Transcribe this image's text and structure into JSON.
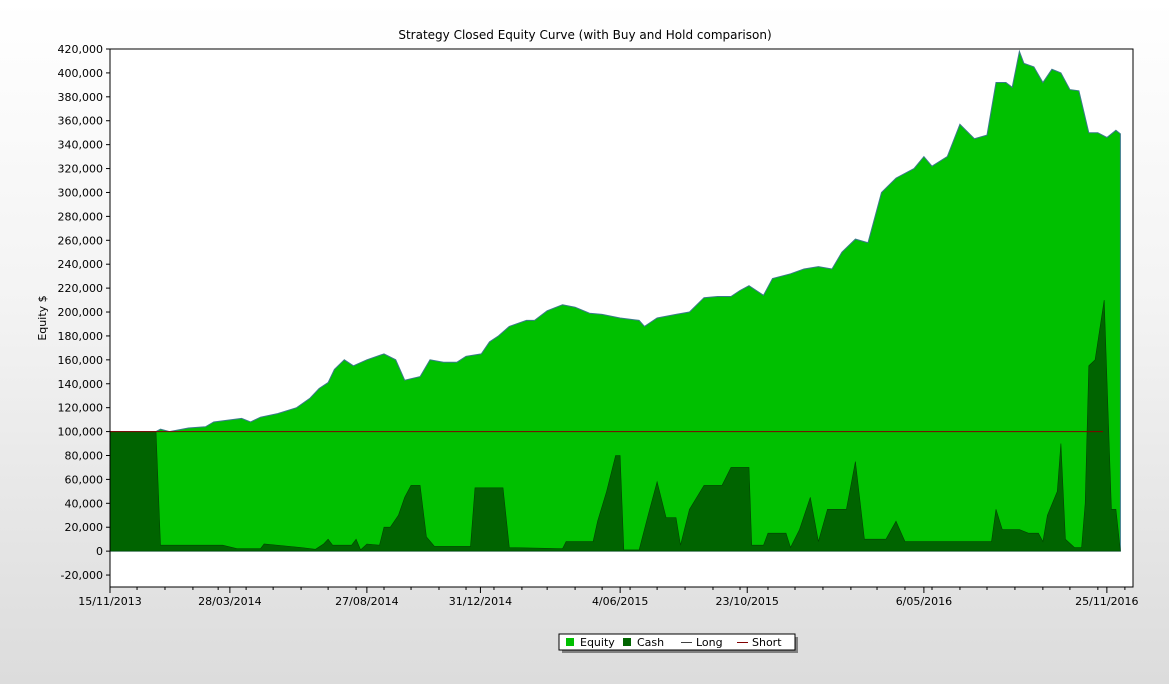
{
  "chart_data": {
    "type": "area",
    "title": "Strategy Closed Equity Curve (with Buy and Hold comparison)",
    "ylabel": "Equity $",
    "xlabel": "",
    "ylim": [
      -30000,
      420000
    ],
    "yticks": [
      -20000,
      0,
      20000,
      40000,
      60000,
      80000,
      100000,
      120000,
      140000,
      160000,
      180000,
      200000,
      220000,
      240000,
      260000,
      280000,
      300000,
      320000,
      340000,
      360000,
      380000,
      400000,
      420000
    ],
    "ytick_labels": [
      "-20,000",
      "0",
      "20,000",
      "40,000",
      "60,000",
      "80,000",
      "100,000",
      "120,000",
      "140,000",
      "160,000",
      "180,000",
      "200,000",
      "220,000",
      "240,000",
      "260,000",
      "280,000",
      "300,000",
      "320,000",
      "340,000",
      "360,000",
      "380,000",
      "400,000",
      "420,000"
    ],
    "xlim": [
      "2013-11-15",
      "2016-12-24"
    ],
    "xticks": [
      "2013-11-15",
      "2014-03-28",
      "2014-08-27",
      "2014-12-31",
      "2015-06-04",
      "2015-10-23",
      "2016-05-06",
      "2016-11-25"
    ],
    "xtick_labels": [
      "15/11/2013",
      "28/03/2014",
      "27/08/2014",
      "31/12/2014",
      "4/06/2015",
      "23/10/2015",
      "6/05/2016",
      "25/11/2016"
    ],
    "grid": false,
    "legend_position": "bottom-center",
    "legend": [
      {
        "label": "Equity",
        "color": "#00c000",
        "kind": "square"
      },
      {
        "label": "Cash",
        "color": "#006400",
        "kind": "square"
      },
      {
        "label": "Long",
        "color": "#404040",
        "kind": "line"
      },
      {
        "label": "Short",
        "color": "#800000",
        "kind": "line"
      }
    ],
    "series": [
      {
        "name": "Equity",
        "color": "#00c000",
        "points": [
          [
            "2013-11-15",
            100000
          ],
          [
            "2014-01-05",
            100000
          ],
          [
            "2014-01-10",
            102000
          ],
          [
            "2014-01-20",
            100000
          ],
          [
            "2014-02-10",
            103000
          ],
          [
            "2014-03-01",
            104000
          ],
          [
            "2014-03-10",
            108000
          ],
          [
            "2014-04-10",
            111000
          ],
          [
            "2014-04-20",
            108000
          ],
          [
            "2014-05-01",
            112000
          ],
          [
            "2014-05-20",
            115000
          ],
          [
            "2014-06-10",
            120000
          ],
          [
            "2014-06-25",
            128000
          ],
          [
            "2014-07-05",
            136000
          ],
          [
            "2014-07-15",
            141000
          ],
          [
            "2014-07-22",
            152000
          ],
          [
            "2014-08-02",
            160000
          ],
          [
            "2014-08-12",
            155000
          ],
          [
            "2014-08-27",
            160000
          ],
          [
            "2014-09-15",
            165000
          ],
          [
            "2014-09-28",
            160000
          ],
          [
            "2014-10-08",
            143000
          ],
          [
            "2014-10-25",
            146000
          ],
          [
            "2014-11-05",
            160000
          ],
          [
            "2014-11-20",
            158000
          ],
          [
            "2014-12-05",
            158000
          ],
          [
            "2014-12-15",
            163000
          ],
          [
            "2015-01-01",
            165000
          ],
          [
            "2015-01-10",
            175000
          ],
          [
            "2015-01-20",
            180000
          ],
          [
            "2015-02-01",
            188000
          ],
          [
            "2015-02-20",
            193000
          ],
          [
            "2015-03-01",
            193000
          ],
          [
            "2015-03-15",
            201000
          ],
          [
            "2015-04-01",
            206000
          ],
          [
            "2015-04-15",
            204000
          ],
          [
            "2015-05-01",
            199000
          ],
          [
            "2015-05-15",
            198000
          ],
          [
            "2015-06-04",
            195000
          ],
          [
            "2015-06-25",
            193000
          ],
          [
            "2015-07-01",
            188000
          ],
          [
            "2015-07-15",
            195000
          ],
          [
            "2015-08-05",
            198000
          ],
          [
            "2015-08-20",
            200000
          ],
          [
            "2015-09-05",
            212000
          ],
          [
            "2015-09-20",
            213000
          ],
          [
            "2015-10-05",
            213000
          ],
          [
            "2015-10-15",
            218000
          ],
          [
            "2015-10-25",
            222000
          ],
          [
            "2015-11-10",
            214000
          ],
          [
            "2015-11-20",
            228000
          ],
          [
            "2015-12-10",
            232000
          ],
          [
            "2015-12-25",
            236000
          ],
          [
            "2016-01-10",
            238000
          ],
          [
            "2016-01-25",
            236000
          ],
          [
            "2016-02-05",
            250000
          ],
          [
            "2016-02-20",
            261000
          ],
          [
            "2016-03-05",
            258000
          ],
          [
            "2016-03-20",
            300000
          ],
          [
            "2016-04-05",
            312000
          ],
          [
            "2016-04-25",
            320000
          ],
          [
            "2016-05-06",
            330000
          ],
          [
            "2016-05-15",
            322000
          ],
          [
            "2016-06-01",
            330000
          ],
          [
            "2016-06-15",
            357000
          ],
          [
            "2016-07-01",
            345000
          ],
          [
            "2016-07-15",
            348000
          ],
          [
            "2016-07-25",
            392000
          ],
          [
            "2016-08-05",
            392000
          ],
          [
            "2016-08-12",
            388000
          ],
          [
            "2016-08-20",
            418000
          ],
          [
            "2016-08-25",
            408000
          ],
          [
            "2016-09-05",
            405000
          ],
          [
            "2016-09-15",
            392000
          ],
          [
            "2016-09-25",
            403000
          ],
          [
            "2016-10-05",
            400000
          ],
          [
            "2016-10-15",
            386000
          ],
          [
            "2016-10-25",
            385000
          ],
          [
            "2016-11-05",
            350000
          ],
          [
            "2016-11-15",
            350000
          ],
          [
            "2016-11-25",
            346000
          ],
          [
            "2016-12-05",
            352000
          ],
          [
            "2016-12-10",
            349000
          ]
        ]
      },
      {
        "name": "Cash",
        "color": "#006400",
        "points": [
          [
            "2013-11-15",
            100000
          ],
          [
            "2014-01-05",
            100000
          ],
          [
            "2014-01-10",
            5000
          ],
          [
            "2014-03-20",
            5000
          ],
          [
            "2014-04-05",
            2000
          ],
          [
            "2014-05-01",
            2000
          ],
          [
            "2014-05-05",
            6000
          ],
          [
            "2014-06-15",
            3000
          ],
          [
            "2014-07-01",
            1500
          ],
          [
            "2014-07-10",
            6000
          ],
          [
            "2014-07-15",
            10000
          ],
          [
            "2014-07-20",
            5000
          ],
          [
            "2014-08-10",
            5000
          ],
          [
            "2014-08-15",
            10000
          ],
          [
            "2014-08-20",
            1000
          ],
          [
            "2014-08-27",
            6000
          ],
          [
            "2014-09-10",
            5000
          ],
          [
            "2014-09-15",
            20000
          ],
          [
            "2014-09-22",
            20000
          ],
          [
            "2014-10-01",
            30000
          ],
          [
            "2014-10-08",
            45000
          ],
          [
            "2014-10-15",
            55000
          ],
          [
            "2014-10-25",
            55000
          ],
          [
            "2014-11-01",
            12000
          ],
          [
            "2014-11-10",
            4000
          ],
          [
            "2014-12-20",
            4000
          ],
          [
            "2014-12-25",
            53000
          ],
          [
            "2015-01-25",
            53000
          ],
          [
            "2015-02-01",
            3000
          ],
          [
            "2015-04-01",
            2000
          ],
          [
            "2015-04-05",
            8000
          ],
          [
            "2015-05-05",
            8000
          ],
          [
            "2015-05-10",
            25000
          ],
          [
            "2015-05-20",
            50000
          ],
          [
            "2015-05-30",
            80000
          ],
          [
            "2015-06-04",
            80000
          ],
          [
            "2015-06-08",
            1000
          ],
          [
            "2015-06-25",
            1000
          ],
          [
            "2015-07-05",
            30000
          ],
          [
            "2015-07-15",
            58000
          ],
          [
            "2015-07-25",
            28000
          ],
          [
            "2015-08-05",
            28000
          ],
          [
            "2015-08-10",
            5000
          ],
          [
            "2015-08-20",
            35000
          ],
          [
            "2015-09-05",
            55000
          ],
          [
            "2015-09-25",
            55000
          ],
          [
            "2015-10-05",
            70000
          ],
          [
            "2015-10-25",
            70000
          ],
          [
            "2015-10-28",
            5000
          ],
          [
            "2015-11-10",
            5000
          ],
          [
            "2015-11-15",
            15000
          ],
          [
            "2015-12-05",
            15000
          ],
          [
            "2015-12-10",
            3000
          ],
          [
            "2015-12-20",
            18000
          ],
          [
            "2016-01-01",
            45000
          ],
          [
            "2016-01-10",
            8000
          ],
          [
            "2016-01-20",
            35000
          ],
          [
            "2016-02-10",
            35000
          ],
          [
            "2016-02-20",
            75000
          ],
          [
            "2016-03-01",
            10000
          ],
          [
            "2016-03-25",
            10000
          ],
          [
            "2016-04-05",
            25000
          ],
          [
            "2016-04-15",
            8000
          ],
          [
            "2016-07-20",
            8000
          ],
          [
            "2016-07-25",
            35000
          ],
          [
            "2016-08-01",
            18000
          ],
          [
            "2016-08-20",
            18000
          ],
          [
            "2016-08-30",
            15000
          ],
          [
            "2016-09-10",
            15000
          ],
          [
            "2016-09-15",
            8000
          ],
          [
            "2016-09-20",
            30000
          ],
          [
            "2016-10-01",
            50000
          ],
          [
            "2016-10-05",
            90000
          ],
          [
            "2016-10-10",
            10000
          ],
          [
            "2016-10-20",
            3000
          ],
          [
            "2016-10-28",
            3000
          ],
          [
            "2016-11-01",
            40000
          ],
          [
            "2016-11-05",
            155000
          ],
          [
            "2016-11-12",
            160000
          ],
          [
            "2016-11-22",
            210000
          ],
          [
            "2016-11-30",
            35000
          ],
          [
            "2016-12-05",
            35000
          ],
          [
            "2016-12-10",
            0
          ]
        ]
      }
    ],
    "reference_lines": [
      {
        "name": "Short",
        "y": 100000,
        "color": "#800000"
      }
    ]
  }
}
